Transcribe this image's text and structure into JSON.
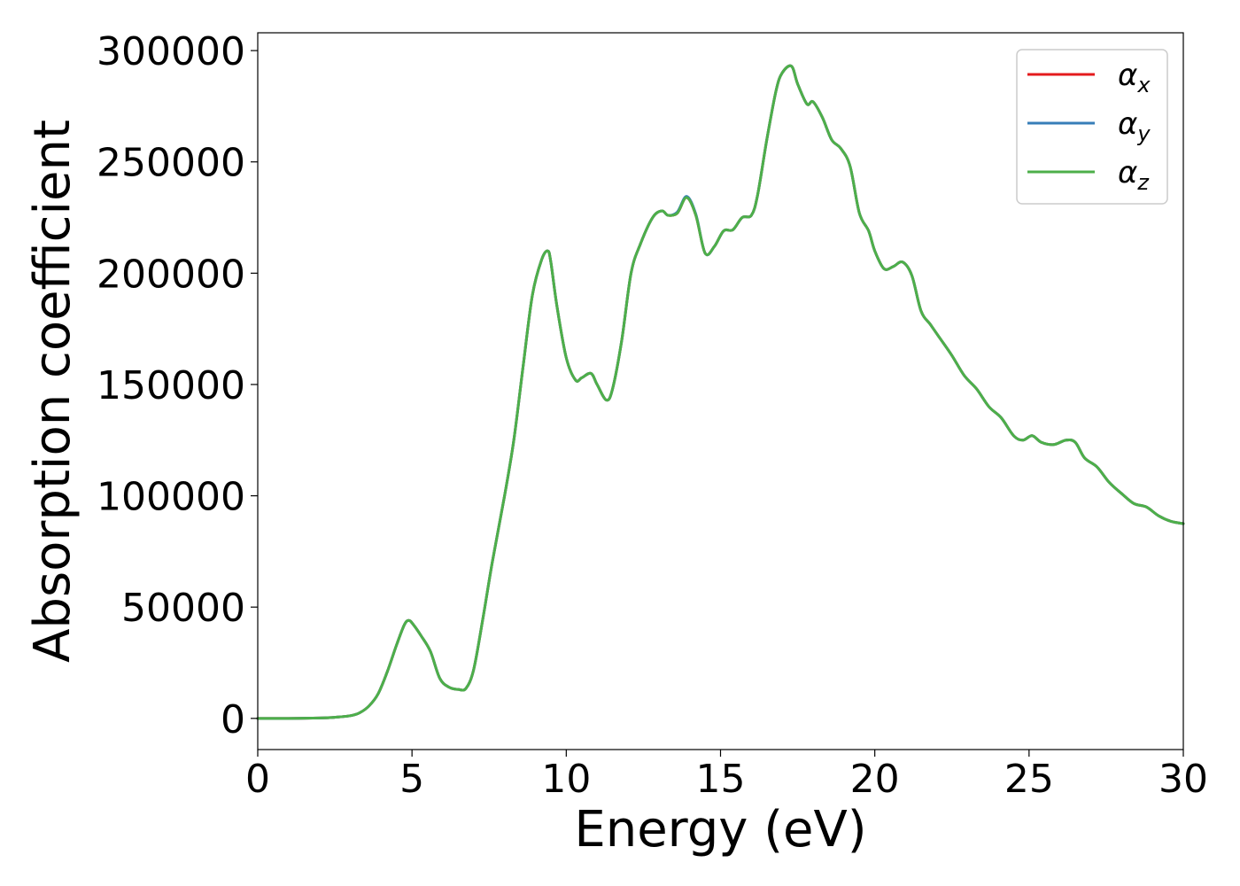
{
  "chart_data": {
    "type": "line",
    "title": "",
    "xlabel": "Energy (eV)",
    "ylabel": "Absorption coefficient",
    "xlim": [
      0,
      30
    ],
    "ylim": [
      -14000,
      308000
    ],
    "grid": false,
    "legend_position": "top-right",
    "x_ticks": [
      0,
      5,
      10,
      15,
      20,
      25,
      30
    ],
    "y_ticks": [
      0,
      50000,
      100000,
      150000,
      200000,
      250000,
      300000
    ],
    "x_tick_labels": [
      "0",
      "5",
      "10",
      "15",
      "20",
      "25",
      "30"
    ],
    "y_tick_labels": [
      "0",
      "50000",
      "100000",
      "150000",
      "200000",
      "250000",
      "300000"
    ],
    "x": [
      0,
      1,
      2,
      2.5,
      3,
      3.3,
      3.6,
      3.9,
      4.2,
      4.5,
      4.75,
      4.9,
      5.05,
      5.3,
      5.6,
      5.9,
      6.2,
      6.5,
      6.75,
      7.0,
      7.3,
      7.6,
      8.0,
      8.3,
      8.6,
      8.9,
      9.2,
      9.4,
      9.5,
      9.7,
      10.0,
      10.3,
      10.5,
      10.8,
      11.0,
      11.3,
      11.5,
      11.8,
      12.1,
      12.4,
      12.8,
      13.1,
      13.3,
      13.6,
      13.9,
      14.2,
      14.5,
      14.8,
      15.1,
      15.4,
      15.7,
      16.0,
      16.2,
      16.5,
      16.8,
      17.0,
      17.3,
      17.5,
      17.8,
      18.0,
      18.3,
      18.6,
      18.9,
      19.2,
      19.5,
      19.8,
      20.0,
      20.3,
      20.6,
      20.9,
      21.2,
      21.5,
      21.8,
      22.1,
      22.5,
      22.9,
      23.3,
      23.7,
      24.1,
      24.5,
      24.8,
      25.1,
      25.4,
      25.8,
      26.2,
      26.5,
      26.8,
      27.2,
      27.6,
      28.0,
      28.4,
      28.8,
      29.2,
      29.6,
      30.0
    ],
    "series": [
      {
        "name": "α_x",
        "color": "#e41a1c",
        "values": [
          0,
          0,
          200,
          500,
          1200,
          2500,
          5500,
          11000,
          21000,
          33000,
          42000,
          44000,
          42000,
          37000,
          30000,
          18000,
          14000,
          13000,
          13500,
          22000,
          45000,
          70000,
          100000,
          125000,
          158000,
          190000,
          206000,
          210000,
          205000,
          185000,
          162000,
          152000,
          153000,
          155000,
          150000,
          143000,
          148000,
          170000,
          200000,
          213000,
          225000,
          228000,
          226000,
          227000,
          234000,
          226000,
          209000,
          212000,
          219000,
          219500,
          225000,
          226000,
          235000,
          260000,
          282000,
          290000,
          293000,
          285000,
          276000,
          277000,
          270000,
          260000,
          256000,
          248000,
          227000,
          219000,
          210000,
          202000,
          203000,
          205000,
          199000,
          183000,
          177000,
          171000,
          163000,
          154000,
          148000,
          140000,
          135000,
          127000,
          125000,
          127000,
          124000,
          123000,
          125000,
          124000,
          117000,
          113000,
          106000,
          101000,
          96500,
          95000,
          91000,
          88500,
          87500
        ]
      },
      {
        "name": "α_y",
        "color": "#377eb8",
        "values": [
          0,
          0,
          200,
          500,
          1200,
          2500,
          5500,
          11000,
          21000,
          33000,
          42000,
          44000,
          42000,
          37000,
          30000,
          18000,
          14000,
          13000,
          13500,
          22000,
          45000,
          70000,
          100000,
          125000,
          158000,
          190000,
          206000,
          210000,
          205000,
          185000,
          162000,
          152000,
          153000,
          155000,
          150000,
          143000,
          148000,
          170000,
          200000,
          213000,
          225000,
          228000,
          226000,
          227500,
          234500,
          226500,
          209000,
          212000,
          219000,
          219500,
          225000,
          226000,
          235000,
          260000,
          282000,
          290000,
          293000,
          285000,
          276000,
          277000,
          270000,
          260000,
          256000,
          248000,
          227000,
          219000,
          210000,
          202000,
          203000,
          205000,
          199000,
          183000,
          177000,
          171000,
          163000,
          154000,
          148000,
          140000,
          135000,
          127000,
          125000,
          127000,
          124000,
          123000,
          125000,
          124000,
          117000,
          113000,
          106000,
          101000,
          96500,
          95000,
          91000,
          88500,
          87500
        ]
      },
      {
        "name": "α_z",
        "color": "#4daf4a",
        "values": [
          0,
          0,
          200,
          500,
          1200,
          2500,
          5500,
          11000,
          21000,
          33000,
          42000,
          44000,
          42000,
          37000,
          30000,
          18000,
          14000,
          13000,
          13500,
          22000,
          45000,
          70000,
          100000,
          125000,
          158000,
          190000,
          206000,
          210000,
          205000,
          185000,
          162000,
          152000,
          153000,
          155000,
          150000,
          143000,
          148000,
          170000,
          200000,
          213000,
          225000,
          228000,
          226000,
          227000,
          234000,
          226000,
          209000,
          212000,
          219000,
          219500,
          225000,
          226000,
          235000,
          260000,
          282000,
          290000,
          293000,
          285000,
          276000,
          277000,
          270000,
          260000,
          256000,
          248000,
          227000,
          219000,
          210000,
          202000,
          203000,
          205000,
          199000,
          183000,
          177000,
          171000,
          163000,
          154000,
          148000,
          140000,
          135000,
          127000,
          125000,
          127000,
          124000,
          123000,
          125000,
          124000,
          117000,
          113000,
          106000,
          101000,
          96500,
          95000,
          91000,
          88500,
          87500
        ]
      }
    ],
    "legend": [
      {
        "symbol": "α",
        "sub": "x",
        "color": "#e41a1c"
      },
      {
        "symbol": "α",
        "sub": "y",
        "color": "#377eb8"
      },
      {
        "symbol": "α",
        "sub": "z",
        "color": "#4daf4a"
      }
    ]
  }
}
